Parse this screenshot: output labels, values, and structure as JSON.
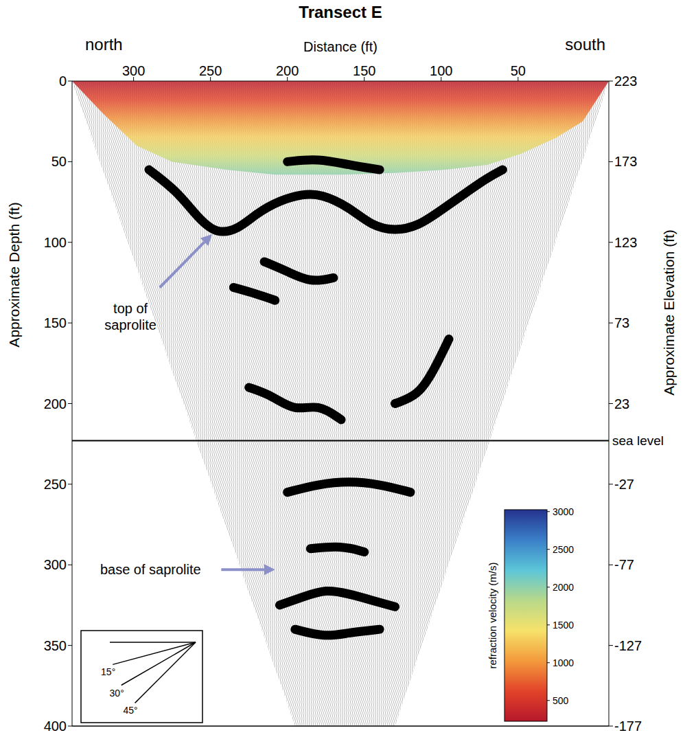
{
  "chart_data": {
    "type": "seismic_section",
    "title": "Transect E",
    "xlabel": "Distance (ft)",
    "ylabel": "Approximate Depth (ft)",
    "y2label": "Approximate Elevation (ft)",
    "end_labels": {
      "left": "north",
      "right": "south"
    },
    "xlim": [
      340,
      -9
    ],
    "xticks": [
      50,
      100,
      150,
      200,
      250,
      300
    ],
    "ylim": [
      400,
      0
    ],
    "yticks": [
      0,
      50,
      100,
      150,
      200,
      250,
      300,
      350,
      400
    ],
    "y2lim": [
      -177,
      223
    ],
    "y2ticks": [
      223,
      173,
      123,
      73,
      23,
      -27,
      -77,
      -127,
      -177
    ],
    "sea_level": {
      "value": 0,
      "label": "sea level"
    },
    "coverage": {
      "x": [
        340,
        195,
        130,
        -9
      ],
      "max_depth": [
        0,
        400,
        400,
        0
      ]
    },
    "velocity_layer": {
      "x": [
        340,
        320,
        298,
        275,
        240,
        208,
        164,
        130,
        97,
        70,
        48,
        25,
        8,
        -9
      ],
      "bottom_depth": [
        0,
        20,
        40,
        50,
        55,
        58,
        58,
        57,
        55,
        52,
        45,
        35,
        25,
        0
      ],
      "velocity_top": 300,
      "velocity_bottom": 2000
    },
    "reflectors": [
      {
        "x": [
          290,
          272,
          258,
          246,
          232,
          220,
          205,
          190,
          178,
          160,
          145,
          130,
          115,
          100,
          85,
          70,
          60
        ],
        "depth": [
          55,
          68,
          85,
          95,
          92,
          82,
          74,
          70,
          70,
          78,
          90,
          93,
          90,
          80,
          70,
          60,
          55
        ]
      },
      {
        "x": [
          200,
          180,
          160,
          140
        ],
        "depth": [
          50,
          48,
          52,
          55
        ]
      },
      {
        "x": [
          215,
          200,
          185,
          170
        ],
        "depth": [
          112,
          118,
          125,
          122
        ]
      },
      {
        "x": [
          235,
          220,
          208
        ],
        "depth": [
          128,
          132,
          136
        ]
      },
      {
        "x": [
          225,
          210,
          195,
          180,
          165
        ],
        "depth": [
          190,
          195,
          205,
          200,
          210
        ]
      },
      {
        "x": [
          130,
          115,
          105,
          95
        ],
        "depth": [
          200,
          195,
          180,
          160
        ]
      },
      {
        "x": [
          200,
          180,
          160,
          140,
          120
        ],
        "depth": [
          255,
          250,
          248,
          250,
          255
        ]
      },
      {
        "x": [
          185,
          165,
          150
        ],
        "depth": [
          290,
          288,
          292
        ]
      },
      {
        "x": [
          205,
          190,
          175,
          160,
          145,
          130
        ],
        "depth": [
          325,
          320,
          315,
          318,
          322,
          326
        ]
      },
      {
        "x": [
          195,
          175,
          160,
          140
        ],
        "depth": [
          340,
          345,
          342,
          340
        ]
      }
    ],
    "annotations": [
      {
        "text": "top of saprolite",
        "text_at": [
          302,
          146
        ],
        "arrow_from": [
          283,
          128
        ],
        "arrow_to": [
          249,
          95
        ]
      },
      {
        "text": "base of saprolite",
        "text_at": [
          289,
          303
        ],
        "arrow_from": [
          243,
          303
        ],
        "arrow_to": [
          208,
          303
        ]
      }
    ],
    "colorbar": {
      "label": "refraction velocity (m/s)",
      "range": [
        225,
        3025
      ],
      "ticks": [
        500,
        1000,
        1500,
        2000,
        2500,
        3000
      ],
      "colors": [
        "#b5172b",
        "#e2432a",
        "#f39a3b",
        "#f6e26a",
        "#b8d98a",
        "#5cc6d8",
        "#3a7fc8",
        "#25338f"
      ]
    },
    "dip_scale": {
      "angles": [
        0,
        15,
        30,
        45
      ],
      "labels": [
        null,
        "15°",
        "30°",
        "45°"
      ]
    }
  }
}
